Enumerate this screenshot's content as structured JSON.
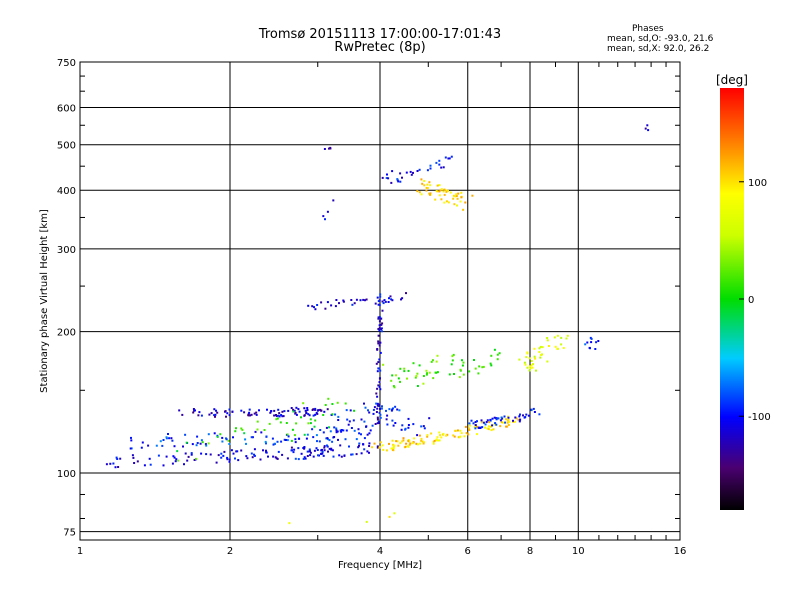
{
  "chart_data": {
    "type": "scatter",
    "title": "Tromsø 20151113 17:00:00-17:01:43",
    "subtitle": "RwPretec (8p)",
    "xlabel": "Frequency [MHz]",
    "ylabel": "Stationary phase Virtual Height [km]",
    "xscale": "log",
    "yscale": "log",
    "xlim": [
      1,
      16
    ],
    "ylim": [
      72,
      750
    ],
    "xticks": [
      1,
      2,
      4,
      6,
      8,
      10,
      16
    ],
    "xtick_labels": [
      "1",
      "2",
      "4",
      "6",
      "8",
      "10",
      "16"
    ],
    "yticks": [
      75,
      100,
      200,
      300,
      400,
      500,
      600,
      750
    ],
    "ytick_labels": [
      "75",
      "100",
      "200",
      "300",
      "400",
      "500",
      "600",
      "750"
    ],
    "grid": true,
    "phases_legend": {
      "heading": "Phases",
      "line1": "mean, sd,O: -93.0, 21.6",
      "line2": "mean, sd,X: 92.0, 26.2"
    },
    "colorbar": {
      "label": "[deg]",
      "range": [
        -180,
        180
      ],
      "ticks": [
        100,
        0,
        -100
      ],
      "tick_labels": [
        "100",
        "0",
        "-100"
      ]
    },
    "traces": [
      {
        "x": [
          1.15,
          1.5,
          1.9,
          2.3,
          2.7,
          3.1,
          3.5,
          3.9
        ],
        "y": [
          105,
          107,
          108,
          110,
          110,
          111,
          112,
          113
        ],
        "phase": -105,
        "n": 140,
        "jx": 0.03,
        "jy": 0.03
      },
      {
        "x": [
          1.2,
          1.5,
          1.8,
          2.2,
          2.6,
          3.0,
          3.4,
          3.9
        ],
        "y": [
          115,
          117,
          118,
          119,
          119,
          120,
          121,
          122
        ],
        "phase": -90,
        "n": 100,
        "jx": 0.03,
        "jy": 0.035
      },
      {
        "x": [
          1.6,
          1.9,
          2.3,
          2.7,
          3.1
        ],
        "y": [
          135,
          134,
          134,
          135,
          135
        ],
        "phase": -115,
        "n": 90,
        "jx": 0.02,
        "jy": 0.02
      },
      {
        "x": [
          3.1,
          3.5,
          3.9,
          4.4,
          5.0
        ],
        "y": [
          128,
          130,
          133,
          131,
          125
        ],
        "phase": -95,
        "n": 60,
        "jx": 0.03,
        "jy": 0.06
      },
      {
        "x": [
          3.9,
          4.4,
          5.0,
          5.6,
          6.2,
          6.9,
          7.5
        ],
        "y": [
          113,
          115,
          118,
          121,
          124,
          127,
          130
        ],
        "phase": 100,
        "n": 120,
        "jx": 0.02,
        "jy": 0.025
      },
      {
        "x": [
          6.0,
          6.6,
          7.2,
          7.7,
          8.3
        ],
        "y": [
          126,
          128,
          130,
          131,
          135
        ],
        "phase": -100,
        "n": 50,
        "jx": 0.02,
        "jy": 0.02
      },
      {
        "x": [
          3.95,
          3.97,
          3.98,
          4.0,
          4.02
        ],
        "y": [
          125,
          150,
          180,
          210,
          240
        ],
        "phase": -110,
        "n": 60,
        "jx": 0.01,
        "jy": 0.02
      },
      {
        "x": [
          2.9,
          3.2,
          3.6,
          4.1,
          4.6
        ],
        "y": [
          226,
          229,
          232,
          235,
          238
        ],
        "phase": -110,
        "n": 35,
        "jx": 0.02,
        "jy": 0.02
      },
      {
        "x": [
          4.2,
          4.8,
          5.4,
          6.2,
          7.0
        ],
        "y": [
          160,
          163,
          168,
          172,
          178
        ],
        "phase": 20,
        "n": 60,
        "jx": 0.05,
        "jy": 0.06
      },
      {
        "x": [
          7.6,
          8.2,
          8.8,
          9.4
        ],
        "y": [
          165,
          175,
          185,
          195
        ],
        "phase": 70,
        "n": 40,
        "jx": 0.03,
        "jy": 0.05
      },
      {
        "x": [
          4.8,
          5.2,
          5.6,
          6.0
        ],
        "y": [
          410,
          400,
          385,
          375
        ],
        "phase": 100,
        "n": 55,
        "jx": 0.03,
        "jy": 0.04
      },
      {
        "x": [
          4.0,
          4.5,
          5.0,
          5.6
        ],
        "y": [
          420,
          430,
          450,
          460
        ],
        "phase": -100,
        "n": 30,
        "jx": 0.03,
        "jy": 0.03
      },
      {
        "x": [
          1.5,
          2.1,
          2.8,
          3.4
        ],
        "y": [
          108,
          120,
          128,
          140
        ],
        "phase": 10,
        "n": 45,
        "jx": 0.08,
        "jy": 0.07
      },
      {
        "x": [
          10.5,
          11.0
        ],
        "y": [
          185,
          195
        ],
        "phase": -90,
        "n": 10,
        "jx": 0.02,
        "jy": 0.04
      },
      {
        "x": [
          3.1,
          3.2
        ],
        "y": [
          485,
          490
        ],
        "phase": -115,
        "n": 4,
        "jx": 0.01,
        "jy": 0.01
      },
      {
        "x": [
          3.1,
          3.25
        ],
        "y": [
          345,
          392
        ],
        "phase": -110,
        "n": 4,
        "jx": 0.01,
        "jy": 0.02
      },
      {
        "x": [
          2.6,
          5.0
        ],
        "y": [
          78,
          82
        ],
        "phase": 80,
        "n": 4,
        "jx": 0.2,
        "jy": 0.04
      },
      {
        "x": [
          13.2,
          14.0
        ],
        "y": [
          630,
          510
        ],
        "phase": -120,
        "n": 3,
        "jx": 0.01,
        "jy": 0.02
      }
    ]
  },
  "colors": {
    "grid": "#000000",
    "background": "#ffffff"
  }
}
